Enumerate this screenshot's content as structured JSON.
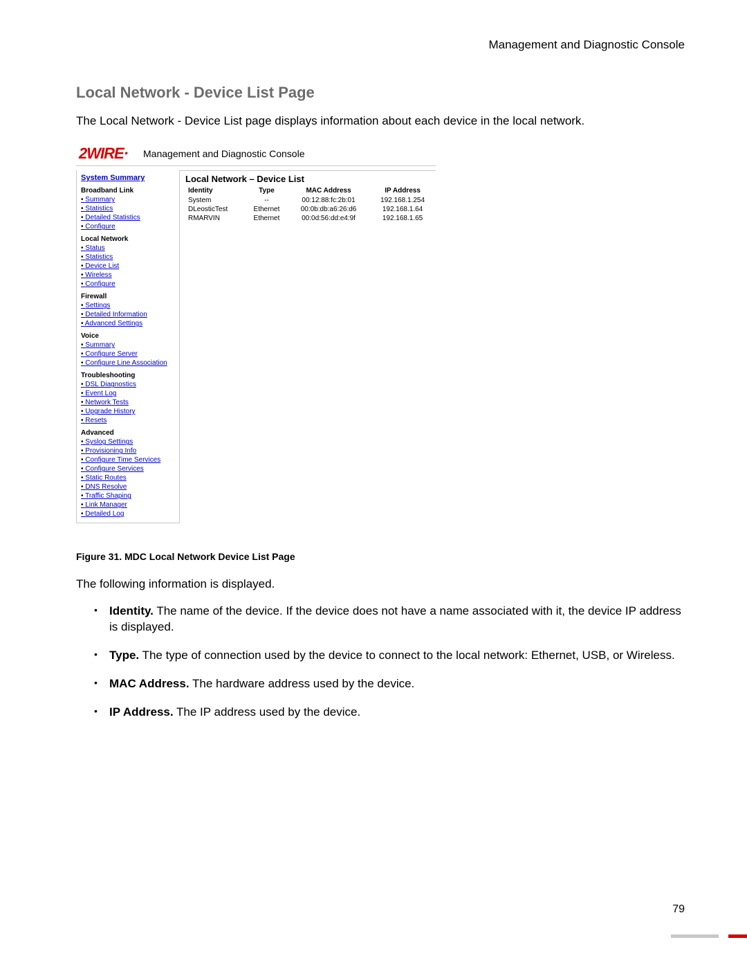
{
  "doc": {
    "header_right": "Management and Diagnostic Console",
    "page_title": "Local Network - Device List Page",
    "intro": "The Local Network - Device List page displays information about each device in the local network.",
    "caption": "Figure 31. MDC Local Network Device List Page",
    "lead_in": "The following information is displayed.",
    "page_number": "79"
  },
  "defs": [
    {
      "term": "Identity.",
      "text": " The name of the device. If the device does not have a name associated with it, the device IP address is displayed."
    },
    {
      "term": "Type.",
      "text": " The type of connection used by the device to connect to the local network: Ethernet, USB, or Wireless."
    },
    {
      "term": "MAC Address.",
      "text": " The hardware address used by the device."
    },
    {
      "term": "IP Address.",
      "text": " The IP address used by the device."
    }
  ],
  "shot": {
    "logo_text": "2WIRE",
    "console_label": "Management and Diagnostic Console",
    "content_title": "Local Network – Device List",
    "columns": [
      "Identity",
      "Type",
      "MAC Address",
      "IP Address"
    ],
    "rows": [
      [
        "System",
        "--",
        "00:12:88:fc:2b:01",
        "192.168.1.254"
      ],
      [
        "DLeosticTest",
        "Ethernet",
        "00:0b:db:a6:26:d6",
        "192.168.1.64"
      ],
      [
        "RMARVIN",
        "Ethernet",
        "00:0d:56:dd:e4:9f",
        "192.168.1.65"
      ]
    ],
    "sidebar": {
      "system_summary": "System Summary",
      "groups": [
        {
          "title": "Broadband Link",
          "items": [
            "Summary",
            "Statistics",
            "Detailed Statistics",
            "Configure"
          ]
        },
        {
          "title": "Local Network",
          "items": [
            "Status",
            "Statistics",
            "Device List",
            "Wireless",
            "Configure"
          ]
        },
        {
          "title": "Firewall",
          "items": [
            "Settings",
            "Detailed Information",
            "Advanced Settings"
          ]
        },
        {
          "title": "Voice",
          "items": [
            "Summary",
            "Configure Server",
            "Configure Line Association"
          ]
        },
        {
          "title": "Troubleshooting",
          "items": [
            "DSL Diagnostics",
            "Event Log",
            "Network Tests",
            "Upgrade History",
            "Resets"
          ]
        },
        {
          "title": "Advanced",
          "items": [
            "Syslog Settings",
            "Provisioning Info",
            "Configure Time Services",
            "Configure Services",
            "Static Routes",
            "DNS Resolve",
            "Traffic Shaping",
            "Link Manager",
            "Detailed Log"
          ]
        }
      ]
    }
  },
  "style": {
    "link_color": "#0000cc",
    "accent_color": "#d60000",
    "title_color": "#6c6c6c",
    "border_color": "#c8c8c8"
  }
}
